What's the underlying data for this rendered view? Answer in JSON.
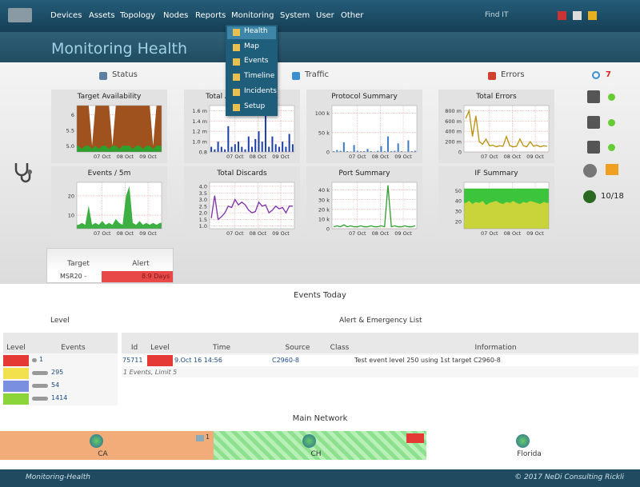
{
  "nav": {
    "items": [
      "Devices",
      "Assets",
      "Topology",
      "Nodes",
      "Reports",
      "Monitoring",
      "System",
      "User",
      "Other"
    ],
    "search": "Find IT"
  },
  "menu": [
    "Health",
    "Map",
    "Events",
    "Timeline",
    "Incidents",
    "Setup"
  ],
  "title": "Monitoring Health",
  "tabs": [
    "Status",
    "Traffic",
    "Errors"
  ],
  "alert_count": 7,
  "status_summary": "10/18",
  "charts": [
    {
      "title": "Target Availability",
      "ylim": [
        4.8,
        6.3
      ],
      "yticks": [
        {
          "value": 5,
          "label": "5.0"
        },
        5.5,
        6
      ],
      "xticks": [
        "07 Oct",
        "08 Oct",
        "09 Oct"
      ],
      "series": [
        {
          "color": "#a0521e",
          "style": "area",
          "values": [
            6.3,
            6.3,
            6.3,
            6.3,
            5.0,
            6.3,
            6.3,
            6.3,
            6.3,
            6.3,
            5.0,
            6.3,
            6.3,
            6.3,
            6.3,
            6.3,
            6.3,
            6.3,
            6.3,
            6.3,
            6.3,
            6.3,
            5.0,
            6.3,
            6.3
          ]
        },
        {
          "color": "#2e9e2e",
          "style": "area",
          "values": [
            5.0,
            4.9,
            5.0,
            5.0,
            4.9,
            5.0,
            4.9,
            5.0,
            5.0,
            4.9,
            5.0,
            5.0,
            4.9,
            5.0,
            5.0,
            5.0,
            4.9,
            5.0,
            5.0,
            4.9,
            5.0,
            5.0,
            4.9,
            5.0,
            5.0
          ]
        }
      ]
    },
    {
      "title": "Total Average Traffic",
      "ylim": [
        0.8,
        1.7
      ],
      "yticks": [
        0.8,
        {
          "value": 1,
          "label": "1.0 m"
        },
        {
          "value": 1.2,
          "label": "1.2 m"
        },
        {
          "value": 1.4,
          "label": "1.4 m"
        },
        {
          "value": 1.6,
          "label": "1.6 m"
        }
      ],
      "xticks": [
        "07 Oct",
        "08 Oct",
        "09 Oct"
      ],
      "series": [
        {
          "color": "#1a3fa8",
          "style": "bar",
          "values": [
            0.9,
            0.85,
            1.0,
            0.9,
            0.85,
            1.3,
            0.9,
            0.95,
            1.0,
            0.9,
            0.85,
            1.1,
            0.9,
            1.05,
            1.2,
            1.0,
            1.55,
            0.9,
            1.1,
            0.95,
            0.9,
            1.0,
            0.9,
            1.15,
            0.95
          ]
        }
      ]
    },
    {
      "title": "Protocol Summary",
      "ylim": [
        0,
        120
      ],
      "yticks": [
        0,
        {
          "value": 50,
          "label": "50 k"
        },
        {
          "value": 100,
          "label": "100 k"
        }
      ],
      "xticks": [
        "07 Oct",
        "08 Oct",
        "09 Oct"
      ],
      "series": [
        {
          "color": "#3b7cc4",
          "style": "bar",
          "values": [
            2,
            5,
            3,
            25,
            2,
            1,
            18,
            3,
            2,
            2,
            8,
            2,
            1,
            3,
            15,
            2,
            40,
            2,
            3,
            22,
            2,
            1,
            30,
            2,
            3
          ]
        }
      ]
    },
    {
      "title": "Total Errors",
      "ylim": [
        0,
        900
      ],
      "yticks": [
        0,
        {
          "value": 200,
          "label": "200 m"
        },
        {
          "value": 400,
          "label": "400 m"
        },
        {
          "value": 600,
          "label": "600 m"
        },
        {
          "value": 800,
          "label": "800 m"
        }
      ],
      "xticks": [
        "07 Oct",
        "08 Oct",
        "09 Oct"
      ],
      "series": [
        {
          "color": "#b8900a",
          "style": "line",
          "values": [
            650,
            800,
            300,
            700,
            200,
            150,
            250,
            120,
            130,
            100,
            120,
            110,
            300,
            120,
            100,
            110,
            250,
            120,
            100,
            200,
            110,
            130,
            100,
            120,
            110
          ]
        }
      ]
    },
    {
      "title": "Events / 5m",
      "ylim": [
        3,
        27
      ],
      "yticks": [
        10,
        20
      ],
      "xticks": [
        "07 Oct",
        "08 Oct",
        "09 Oct"
      ],
      "series": [
        {
          "color": "#3cb043",
          "style": "area",
          "values": [
            5,
            6,
            5,
            15,
            5,
            6,
            5,
            7,
            5,
            6,
            5,
            8,
            6,
            5,
            20,
            25,
            6,
            5,
            7,
            5,
            6,
            5,
            6,
            5,
            6
          ]
        }
      ]
    },
    {
      "title": "Total Discards",
      "ylim": [
        0.8,
        4.3
      ],
      "yticks": [
        {
          "value": 1,
          "label": "1.0"
        },
        1.5,
        {
          "value": 2,
          "label": "2.0"
        },
        2.5,
        {
          "value": 3,
          "label": "3.0"
        },
        3.5,
        {
          "value": 4,
          "label": "4.0"
        }
      ],
      "xticks": [
        "07 Oct",
        "08 Oct",
        "09 Oct"
      ],
      "series": [
        {
          "color": "#7b2fa8",
          "style": "line",
          "values": [
            1.6,
            3.3,
            1.5,
            1.7,
            2.0,
            2.5,
            2.4,
            3.0,
            2.6,
            2.8,
            2.6,
            2.2,
            2.0,
            2.1,
            2.8,
            2.5,
            2.6,
            2.0,
            2.2,
            2.5,
            2.3,
            2.4,
            2.0,
            2.5,
            2.5
          ]
        }
      ]
    },
    {
      "title": "Port Summary",
      "ylim": [
        0,
        48
      ],
      "yticks": [
        0,
        {
          "value": 10,
          "label": "10 k"
        },
        {
          "value": 20,
          "label": "20 k"
        },
        {
          "value": 30,
          "label": "30 k"
        },
        {
          "value": 40,
          "label": "40 k"
        }
      ],
      "xticks": [
        "07 Oct",
        "08 Oct",
        "09 Oct"
      ],
      "series": [
        {
          "color": "#2e9e2e",
          "style": "line",
          "values": [
            2,
            3,
            2,
            4,
            2,
            3,
            2,
            2,
            3,
            2,
            2,
            3,
            2,
            2,
            3,
            2,
            45,
            2,
            3,
            2,
            2,
            3,
            2,
            2,
            3
          ]
        }
      ]
    },
    {
      "title": "IF Summary",
      "ylim": [
        13,
        58
      ],
      "yticks": [
        20,
        30,
        40,
        50
      ],
      "xticks": [
        "07 Oct",
        "08 Oct",
        "09 Oct"
      ],
      "series": [
        {
          "color": "#3cc43c",
          "style": "area",
          "values": [
            52,
            52,
            52,
            52,
            52,
            52,
            52,
            52,
            52,
            52,
            52,
            52,
            52,
            52,
            52,
            52,
            52,
            52,
            52,
            52,
            52,
            52,
            52,
            52,
            52
          ]
        },
        {
          "color": "#c8d43a",
          "style": "area",
          "values": [
            38,
            40,
            37,
            39,
            38,
            40,
            36,
            38,
            39,
            40,
            38,
            37,
            39,
            38,
            40,
            38,
            37,
            39,
            38,
            40,
            39,
            38,
            37,
            39,
            38
          ]
        }
      ]
    }
  ],
  "target_alert": {
    "headers": [
      "Target",
      "Alert"
    ],
    "row": [
      "MSR20 -",
      "8.9 Days"
    ]
  },
  "events_today": "Events Today",
  "level_table": {
    "title": "Level",
    "headers": [
      "Level",
      "Events"
    ],
    "rows": [
      {
        "color": "#e53935",
        "count": 1
      },
      {
        "color": "#f2e14c",
        "count": 295
      },
      {
        "color": "#7b8fe0",
        "count": 54
      },
      {
        "color": "#8bd43a",
        "count": 1414
      }
    ]
  },
  "alert_table": {
    "title": "Alert & Emergency List",
    "headers": [
      "Id",
      "Level",
      "Time",
      "Source",
      "Class",
      "Information"
    ],
    "row": [
      "75711",
      "9.Oct 16 14:56",
      "C2960-8",
      "Test event level 250 using 1st target C2960-8"
    ],
    "footer": "1 Events, Limit 5"
  },
  "network": {
    "title": "Main Network",
    "locations": [
      {
        "name": "CA",
        "badge": 1
      },
      {
        "name": "CH"
      },
      {
        "name": "Florida"
      }
    ]
  },
  "footer": {
    "left": "Monitoring-Health",
    "right": "© 2017 NeDi Consulting Rickli"
  }
}
